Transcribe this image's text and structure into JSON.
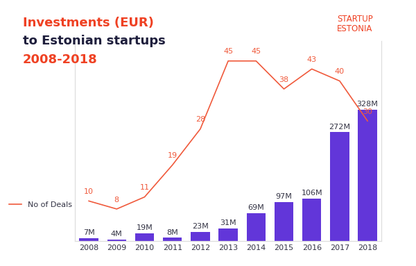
{
  "chart_data": {
    "type": "bar",
    "title": "Investments (EUR)\nto Estonian startups\n2008-2018",
    "logo": "STARTUP\nESTONIA",
    "categories": [
      "2008",
      "2009",
      "2010",
      "2011",
      "2012",
      "2013",
      "2014",
      "2015",
      "2016",
      "2017",
      "2018"
    ],
    "series": [
      {
        "type": "bar",
        "color": "#6236d9",
        "data_labels": true,
        "values": [
          7,
          4,
          19,
          8,
          23,
          31,
          69,
          97,
          106,
          272,
          328
        ],
        "value_labels": [
          "7M",
          "4M",
          "19M",
          "8M",
          "23M",
          "31M",
          "69M",
          "97M",
          "106M",
          "272M",
          "328M"
        ]
      },
      {
        "name": "No of Deals",
        "type": "line",
        "axis": "y2",
        "color": "#f05a3c",
        "data_labels": true,
        "values": [
          10,
          8,
          11,
          19,
          28,
          45,
          45,
          38,
          43,
          40,
          30
        ]
      }
    ],
    "ylim": [
      0,
      500
    ],
    "yticks": [],
    "y2lim": [
      0,
      50
    ],
    "y2ticks": [],
    "tick_labels": "x",
    "grid": false,
    "legend": "center left"
  }
}
